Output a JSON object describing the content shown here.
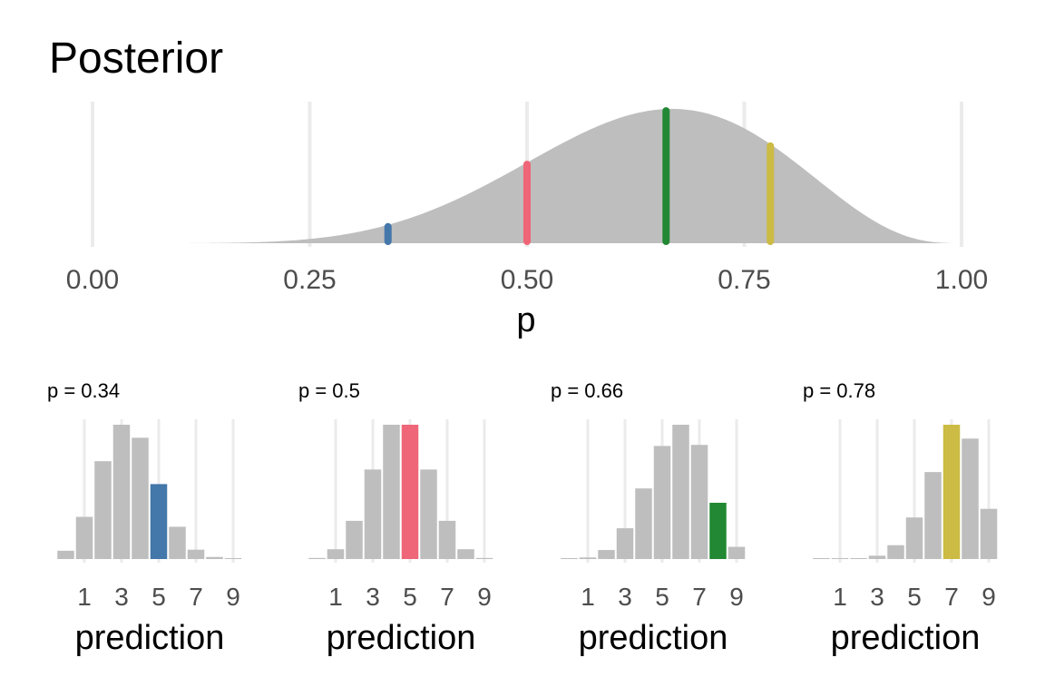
{
  "chart_data": [
    {
      "type": "area",
      "title": "Posterior",
      "xlabel": "p",
      "ylabel": "",
      "xlim": [
        0,
        1
      ],
      "x_ticks": [
        "0.00",
        "0.25",
        "0.50",
        "0.75",
        "1.00"
      ],
      "x_tick_values": [
        0,
        0.25,
        0.5,
        0.75,
        1
      ],
      "grid": true,
      "fill_color": "#bebebe",
      "distribution": {
        "family": "beta",
        "alpha": 7,
        "beta": 4
      },
      "markers": [
        {
          "p": 0.34,
          "color": "#4477aa"
        },
        {
          "p": 0.5,
          "color": "#ee6677"
        },
        {
          "p": 0.66,
          "color": "#228833"
        },
        {
          "p": 0.78,
          "color": "#ccbb44"
        }
      ]
    },
    {
      "type": "bar",
      "title": "p = 0.34",
      "xlabel": "prediction",
      "x_ticks": [
        "1",
        "3",
        "5",
        "7",
        "9"
      ],
      "categories": [
        0,
        1,
        2,
        3,
        4,
        5,
        6,
        7,
        8,
        9
      ],
      "values": [
        0.016,
        0.081,
        0.188,
        0.258,
        0.233,
        0.144,
        0.062,
        0.018,
        0.004,
        0.001
      ],
      "highlight": 5,
      "highlight_color": "#4477aa",
      "bar_color": "#bebebe"
    },
    {
      "type": "bar",
      "title": "p = 0.5",
      "xlabel": "prediction",
      "x_ticks": [
        "1",
        "3",
        "5",
        "7",
        "9"
      ],
      "categories": [
        0,
        1,
        2,
        3,
        4,
        5,
        6,
        7,
        8,
        9
      ],
      "values": [
        0.002,
        0.018,
        0.07,
        0.164,
        0.246,
        0.246,
        0.164,
        0.07,
        0.018,
        0.002
      ],
      "highlight": 5,
      "highlight_color": "#ee6677",
      "bar_color": "#bebebe"
    },
    {
      "type": "bar",
      "title": "p = 0.66",
      "xlabel": "prediction",
      "x_ticks": [
        "1",
        "3",
        "5",
        "7",
        "9"
      ],
      "categories": [
        0,
        1,
        2,
        3,
        4,
        5,
        6,
        7,
        8,
        9
      ],
      "values": [
        0.0002,
        0.003,
        0.017,
        0.058,
        0.133,
        0.213,
        0.253,
        0.215,
        0.106,
        0.023
      ],
      "highlight": 8,
      "highlight_color": "#228833",
      "bar_color": "#bebebe"
    },
    {
      "type": "bar",
      "title": "p = 0.78",
      "xlabel": "prediction",
      "x_ticks": [
        "1",
        "3",
        "5",
        "7",
        "9"
      ],
      "categories": [
        0,
        1,
        2,
        3,
        4,
        5,
        6,
        7,
        8,
        9
      ],
      "values": [
        0,
        0.0001,
        0.0009,
        0.007,
        0.029,
        0.087,
        0.182,
        0.281,
        0.252,
        0.105
      ],
      "highlight": 7,
      "highlight_color": "#ccbb44",
      "bar_color": "#bebebe"
    }
  ]
}
